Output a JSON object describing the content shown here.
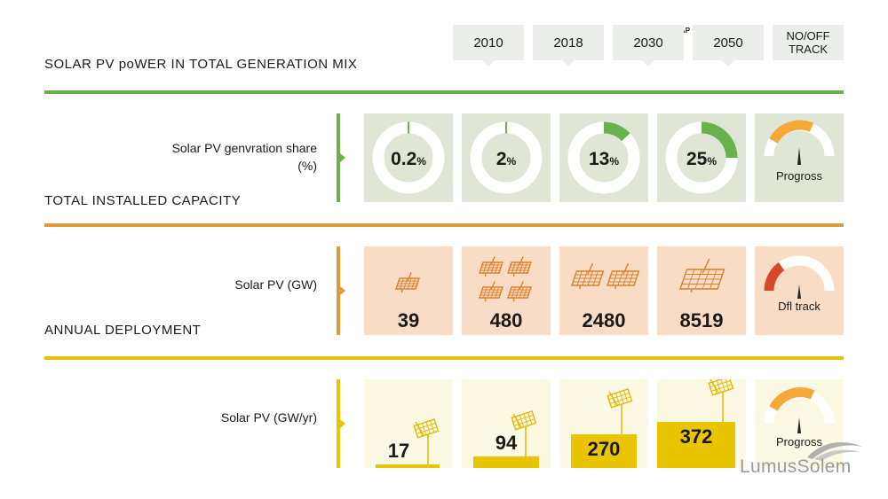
{
  "header": {
    "title": "SOLAR PV poWER IN TOTAL GENERATION MIX",
    "remap_label": "REMAP CASE",
    "years": [
      "2010",
      "2018",
      "2030",
      "2050"
    ],
    "track_line1": "NO/OFF",
    "track_line2": "TRACK"
  },
  "sections": {
    "share": {
      "label_line1": "Solar PV genvration share",
      "label_line2": "(%)",
      "color": "#6ab04c",
      "values": [
        {
          "num": "0.2",
          "unit": "%",
          "fraction": 0.002
        },
        {
          "num": "2",
          "unit": "%",
          "fraction": 0.02
        },
        {
          "num": "13",
          "unit": "%",
          "fraction": 0.13
        },
        {
          "num": "25",
          "unit": "%",
          "fraction": 0.25
        }
      ],
      "status": "Progross"
    },
    "capacity": {
      "title": "TOTAL INSTALLED CAPACITY",
      "label": "Solar PV (GW)",
      "color": "#e09a3a",
      "values": [
        "39",
        "480",
        "2480",
        "8519"
      ],
      "status": "Dfl track"
    },
    "deployment": {
      "title": "ANNUAL DEPLOYMENT",
      "label": "Solar PV (GW/yr)",
      "color": "#e8c500",
      "values": [
        {
          "label": "17",
          "value": 17
        },
        {
          "label": "94",
          "value": 94
        },
        {
          "label": "270",
          "value": 270
        },
        {
          "label": "372",
          "value": 372
        }
      ],
      "status": "Progross"
    }
  },
  "colors": {
    "green": "#6ab04c",
    "orange": "#e09a3a",
    "yellow": "#e8c500",
    "red": "#d9472b",
    "gauge_orange": "#f5a83a",
    "pv_orange": "#d9822b",
    "pv_yellow": "#e0b800"
  },
  "brand": {
    "logo": "LumusSolem"
  }
}
